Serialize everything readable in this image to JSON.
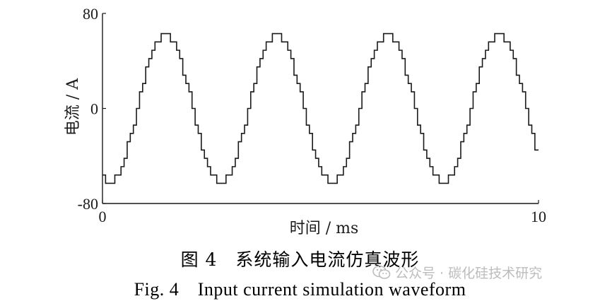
{
  "chart_data": {
    "type": "line",
    "ylabel": "电流 / A",
    "xlabel": "时间 / ms",
    "xlim": [
      0,
      10
    ],
    "ylim": [
      -80,
      80
    ],
    "xticks": [
      "0",
      "10"
    ],
    "yticks": [
      "80",
      "0",
      "-80"
    ],
    "series": [
      {
        "description_values": "stepped sinusoid, 4 periods over 10 ms, amplitude about 63 A",
        "amplitude": 63,
        "period_ms": 2.55,
        "phase_peak_ms": 1.45,
        "steps_per_quarter": 9
      }
    ]
  },
  "caption": {
    "cn": "图 4　系统输入电流仿真波形",
    "en": "Fig. 4　Input current simulation waveform"
  },
  "watermark": {
    "text": "公众号 · 碳化硅技术研究",
    "icon": "wechat-icon"
  },
  "colors": {
    "line": "#1a1a1a",
    "watermark": "#b5b5b5"
  }
}
